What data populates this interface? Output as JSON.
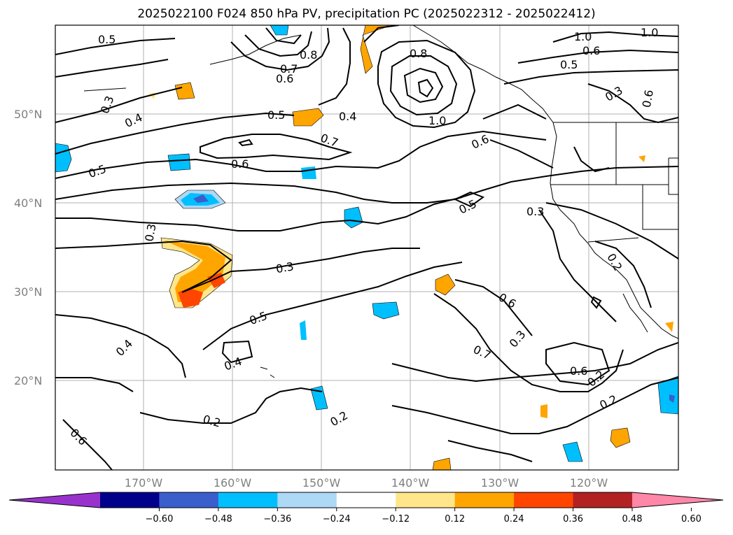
{
  "title": "2025022100 F024 850 hPa PV, precipitation PC (2025022312 - 2025022412)",
  "lon_labels": [
    "170°W",
    "160°W",
    "150°W",
    "140°W",
    "130°W",
    "120°W"
  ],
  "lat_labels": [
    "50°N",
    "40°N",
    "30°N",
    "20°N"
  ],
  "contour_labels": [
    "0.5",
    "0.8",
    "0.7",
    "0.6",
    "1.0",
    "0.8",
    "0.6",
    "0.5",
    "1.0",
    "0.3",
    "0.4",
    "0.5",
    "0.4",
    "0.7",
    "0.6",
    "1.0",
    "0.6",
    "0.3",
    "0.6",
    "0.5",
    "0.5",
    "0.3",
    "0.3",
    "0.3",
    "0.5",
    "0.6",
    "0.3",
    "0.2",
    "0.4",
    "0.4",
    "0.7",
    "0.6",
    "0.2",
    "0.2",
    "0.2",
    "0.2"
  ],
  "colorbar": {
    "ticks": [
      "−0.60",
      "−0.48",
      "−0.36",
      "−0.24",
      "−0.12",
      "0.12",
      "0.24",
      "0.36",
      "0.48",
      "0.60"
    ],
    "colors": [
      "#9932cc",
      "#00008b",
      "#3a5fcd",
      "#00bfff",
      "#add8f6",
      "#ffffff",
      "#ffe68a",
      "#ffa500",
      "#ff4500",
      "#b22222",
      "#ff87a8"
    ]
  }
}
